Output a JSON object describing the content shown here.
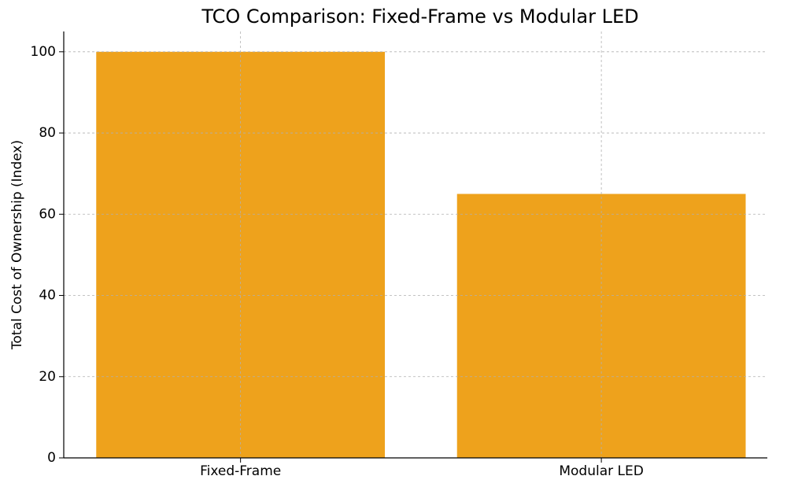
{
  "chart_data": {
    "type": "bar",
    "title": "TCO Comparison: Fixed-Frame vs Modular LED",
    "y_label": "Total Cost of Ownership (Index)",
    "categories": [
      "Fixed-Frame",
      "Modular LED"
    ],
    "values": [
      100,
      65
    ],
    "color": "#eea21c",
    "ylim": [
      0,
      105
    ],
    "yticks": [
      0,
      20,
      40,
      60,
      80,
      100
    ],
    "grid": true
  }
}
